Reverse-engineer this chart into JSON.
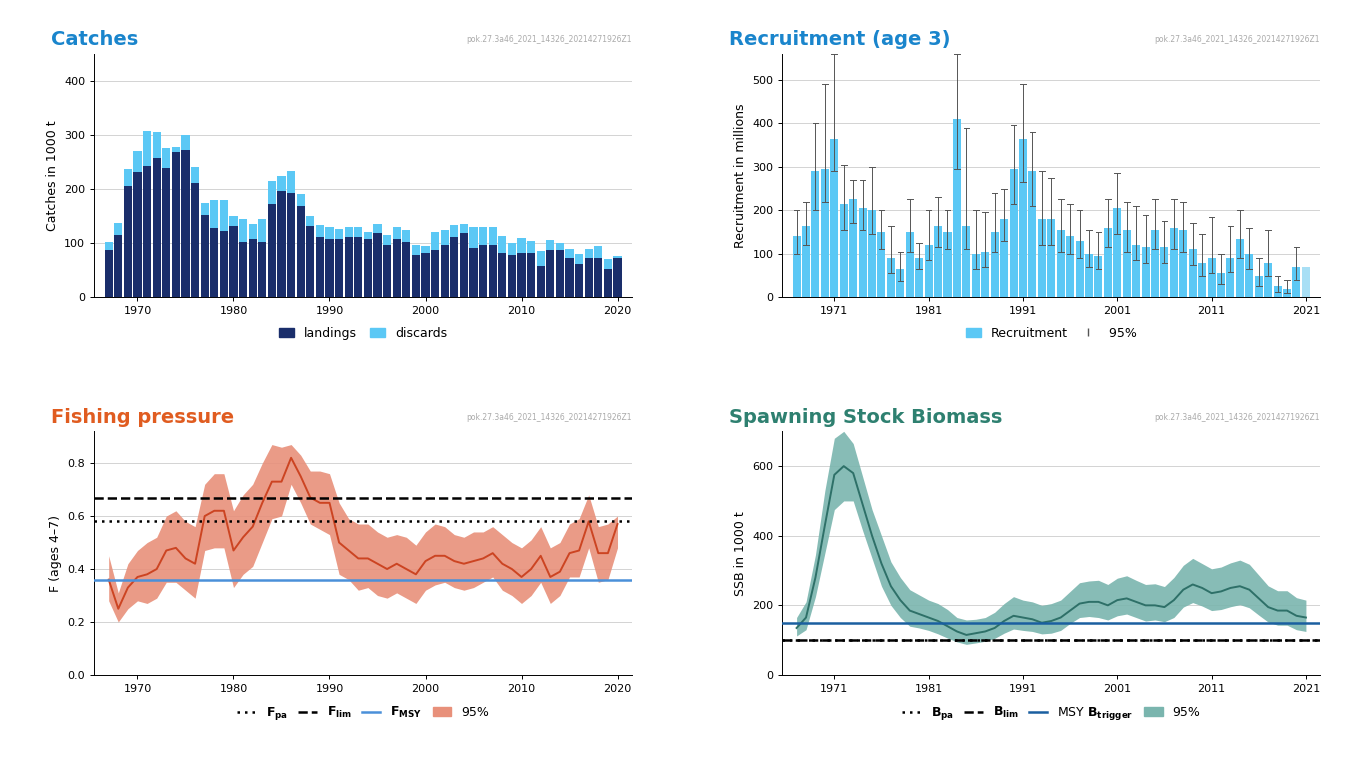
{
  "catches_years": [
    1967,
    1968,
    1969,
    1970,
    1971,
    1972,
    1973,
    1974,
    1975,
    1976,
    1977,
    1978,
    1979,
    1980,
    1981,
    1982,
    1983,
    1984,
    1985,
    1986,
    1987,
    1988,
    1989,
    1990,
    1991,
    1992,
    1993,
    1994,
    1995,
    1996,
    1997,
    1998,
    1999,
    2000,
    2001,
    2002,
    2003,
    2004,
    2005,
    2006,
    2007,
    2008,
    2009,
    2010,
    2011,
    2012,
    2013,
    2014,
    2015,
    2016,
    2017,
    2018,
    2019,
    2020
  ],
  "catches_landings": [
    88,
    115,
    205,
    232,
    242,
    258,
    238,
    268,
    272,
    212,
    152,
    128,
    122,
    132,
    102,
    108,
    102,
    172,
    197,
    192,
    168,
    132,
    112,
    108,
    108,
    112,
    112,
    108,
    118,
    97,
    108,
    102,
    78,
    82,
    88,
    97,
    112,
    118,
    92,
    97,
    97,
    82,
    78,
    82,
    82,
    58,
    88,
    88,
    72,
    62,
    72,
    72,
    52,
    72
  ],
  "catches_discards": [
    15,
    22,
    32,
    38,
    65,
    48,
    38,
    10,
    28,
    28,
    22,
    52,
    58,
    18,
    42,
    28,
    42,
    42,
    28,
    42,
    22,
    18,
    22,
    22,
    18,
    18,
    18,
    12,
    18,
    18,
    22,
    22,
    18,
    12,
    32,
    28,
    22,
    18,
    38,
    32,
    32,
    32,
    22,
    28,
    22,
    28,
    18,
    12,
    18,
    18,
    18,
    22,
    18,
    5
  ],
  "rec_years": [
    1967,
    1968,
    1969,
    1970,
    1971,
    1972,
    1973,
    1974,
    1975,
    1976,
    1977,
    1978,
    1979,
    1980,
    1981,
    1982,
    1983,
    1984,
    1985,
    1986,
    1987,
    1988,
    1989,
    1990,
    1991,
    1992,
    1993,
    1994,
    1995,
    1996,
    1997,
    1998,
    1999,
    2000,
    2001,
    2002,
    2003,
    2004,
    2005,
    2006,
    2007,
    2008,
    2009,
    2010,
    2011,
    2012,
    2013,
    2014,
    2015,
    2016,
    2017,
    2018,
    2019,
    2020,
    2021
  ],
  "rec_values": [
    140,
    165,
    290,
    295,
    365,
    215,
    225,
    205,
    200,
    150,
    90,
    65,
    150,
    90,
    120,
    165,
    150,
    410,
    165,
    100,
    105,
    150,
    180,
    295,
    365,
    290,
    180,
    180,
    155,
    140,
    130,
    100,
    95,
    160,
    205,
    155,
    120,
    115,
    155,
    115,
    160,
    155,
    110,
    80,
    90,
    55,
    90,
    135,
    100,
    50,
    80,
    25,
    20,
    70,
    70
  ],
  "rec_upper": [
    200,
    220,
    400,
    490,
    560,
    305,
    270,
    270,
    300,
    200,
    165,
    105,
    225,
    125,
    200,
    230,
    200,
    560,
    390,
    200,
    195,
    240,
    250,
    395,
    490,
    380,
    290,
    275,
    225,
    215,
    200,
    155,
    150,
    225,
    285,
    220,
    210,
    190,
    225,
    175,
    225,
    220,
    170,
    145,
    185,
    100,
    165,
    200,
    160,
    90,
    155,
    50,
    40,
    115,
    null
  ],
  "rec_lower": [
    100,
    120,
    200,
    220,
    290,
    155,
    170,
    155,
    145,
    110,
    55,
    38,
    105,
    65,
    85,
    115,
    110,
    295,
    110,
    65,
    70,
    105,
    130,
    215,
    265,
    210,
    120,
    120,
    105,
    100,
    90,
    70,
    65,
    115,
    145,
    105,
    85,
    80,
    110,
    80,
    110,
    105,
    75,
    50,
    55,
    30,
    58,
    90,
    65,
    25,
    48,
    12,
    10,
    40,
    null
  ],
  "fishing_years": [
    1967,
    1968,
    1969,
    1970,
    1971,
    1972,
    1973,
    1974,
    1975,
    1976,
    1977,
    1978,
    1979,
    1980,
    1981,
    1982,
    1983,
    1984,
    1985,
    1986,
    1987,
    1988,
    1989,
    1990,
    1991,
    1992,
    1993,
    1994,
    1995,
    1996,
    1997,
    1998,
    1999,
    2000,
    2001,
    2002,
    2003,
    2004,
    2005,
    2006,
    2007,
    2008,
    2009,
    2010,
    2011,
    2012,
    2013,
    2014,
    2015,
    2016,
    2017,
    2018,
    2019,
    2020
  ],
  "fishing_F": [
    0.36,
    0.25,
    0.33,
    0.37,
    0.38,
    0.4,
    0.47,
    0.48,
    0.44,
    0.42,
    0.6,
    0.62,
    0.62,
    0.47,
    0.52,
    0.56,
    0.65,
    0.73,
    0.73,
    0.82,
    0.75,
    0.67,
    0.65,
    0.65,
    0.5,
    0.47,
    0.44,
    0.44,
    0.42,
    0.4,
    0.42,
    0.4,
    0.38,
    0.43,
    0.45,
    0.45,
    0.43,
    0.42,
    0.43,
    0.44,
    0.46,
    0.42,
    0.4,
    0.37,
    0.4,
    0.45,
    0.37,
    0.39,
    0.46,
    0.47,
    0.58,
    0.46,
    0.46,
    0.57
  ],
  "fishing_upper": [
    0.45,
    0.31,
    0.42,
    0.47,
    0.5,
    0.52,
    0.6,
    0.62,
    0.58,
    0.56,
    0.72,
    0.76,
    0.76,
    0.62,
    0.68,
    0.72,
    0.8,
    0.87,
    0.86,
    0.87,
    0.83,
    0.77,
    0.77,
    0.76,
    0.65,
    0.59,
    0.57,
    0.57,
    0.54,
    0.52,
    0.53,
    0.52,
    0.49,
    0.54,
    0.57,
    0.56,
    0.53,
    0.52,
    0.54,
    0.54,
    0.56,
    0.53,
    0.5,
    0.48,
    0.51,
    0.56,
    0.48,
    0.5,
    0.57,
    0.59,
    0.68,
    0.56,
    0.57,
    0.6
  ],
  "fishing_lower": [
    0.28,
    0.2,
    0.25,
    0.28,
    0.27,
    0.29,
    0.35,
    0.35,
    0.32,
    0.29,
    0.47,
    0.48,
    0.48,
    0.33,
    0.38,
    0.41,
    0.5,
    0.59,
    0.6,
    0.72,
    0.65,
    0.57,
    0.55,
    0.53,
    0.38,
    0.36,
    0.32,
    0.33,
    0.3,
    0.29,
    0.31,
    0.29,
    0.27,
    0.32,
    0.34,
    0.35,
    0.33,
    0.32,
    0.33,
    0.35,
    0.37,
    0.32,
    0.3,
    0.27,
    0.3,
    0.35,
    0.27,
    0.3,
    0.37,
    0.37,
    0.48,
    0.35,
    0.36,
    0.48
  ],
  "F_pa": 0.58,
  "F_lim": 0.67,
  "F_MSY": 0.36,
  "ssb_years": [
    1967,
    1968,
    1969,
    1970,
    1971,
    1972,
    1973,
    1974,
    1975,
    1976,
    1977,
    1978,
    1979,
    1980,
    1981,
    1982,
    1983,
    1984,
    1985,
    1986,
    1987,
    1988,
    1989,
    1990,
    1991,
    1992,
    1993,
    1994,
    1995,
    1996,
    1997,
    1998,
    1999,
    2000,
    2001,
    2002,
    2003,
    2004,
    2005,
    2006,
    2007,
    2008,
    2009,
    2010,
    2011,
    2012,
    2013,
    2014,
    2015,
    2016,
    2017,
    2018,
    2019,
    2020,
    2021
  ],
  "ssb_values": [
    135,
    165,
    280,
    430,
    575,
    600,
    580,
    490,
    400,
    320,
    255,
    215,
    185,
    175,
    165,
    155,
    140,
    125,
    115,
    120,
    125,
    135,
    155,
    170,
    165,
    160,
    150,
    155,
    165,
    185,
    205,
    210,
    210,
    200,
    215,
    220,
    210,
    200,
    200,
    195,
    215,
    245,
    260,
    250,
    235,
    240,
    250,
    255,
    245,
    220,
    195,
    185,
    185,
    170,
    165
  ],
  "ssb_upper": [
    165,
    210,
    345,
    530,
    680,
    700,
    665,
    570,
    475,
    400,
    325,
    280,
    245,
    230,
    215,
    205,
    188,
    165,
    158,
    160,
    165,
    180,
    205,
    225,
    215,
    210,
    200,
    205,
    215,
    240,
    265,
    270,
    272,
    260,
    278,
    285,
    272,
    260,
    262,
    254,
    280,
    315,
    335,
    320,
    305,
    310,
    322,
    330,
    318,
    287,
    256,
    242,
    242,
    222,
    215
  ],
  "ssb_lower": [
    112,
    130,
    225,
    350,
    475,
    500,
    500,
    415,
    335,
    255,
    200,
    165,
    140,
    135,
    128,
    118,
    106,
    95,
    88,
    92,
    97,
    105,
    120,
    132,
    128,
    125,
    118,
    120,
    128,
    148,
    165,
    168,
    165,
    158,
    170,
    175,
    165,
    155,
    158,
    153,
    165,
    195,
    208,
    198,
    185,
    188,
    196,
    202,
    193,
    172,
    152,
    143,
    143,
    130,
    125
  ],
  "B_pa": 100,
  "B_lim": 100,
  "MSY_Btrigger": 150,
  "catches_color_landings": "#1a2e6b",
  "catches_color_discards": "#5bc8f5",
  "rec_color": "#5bc8f5",
  "rec_shaded_color": "#a8dff5",
  "fishing_color": "#cc4422",
  "fishing_shade_color": "#e8907a",
  "ssb_color": "#2e7068",
  "ssb_shade_color": "#7ab5ae",
  "title_catches": "Catches",
  "title_rec": "Recruitment (age 3)",
  "title_fishing": "Fishing pressure",
  "title_ssb": "Spawning Stock Biomass",
  "catches_ylabel": "Catches in 1000 t",
  "rec_ylabel": "Recruitment in millions",
  "fishing_ylabel": "F (ages 4–7)",
  "ssb_ylabel": "SSB in 1000 t",
  "watermark": "pok.27.3a46_2021_14326_20214271926Z1",
  "background_color": "#ffffff",
  "title_color_blue": "#1a85cc",
  "title_color_orange": "#e05c20",
  "title_color_teal": "#2e8070",
  "ref_line_blue": "#4a90d9",
  "ref_line_navy": "#1a5fa0"
}
